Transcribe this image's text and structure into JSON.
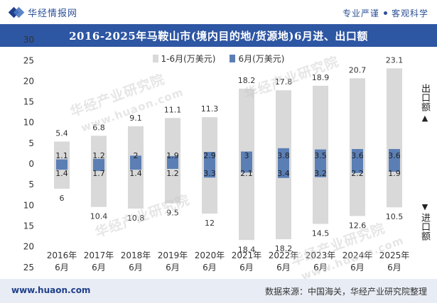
{
  "header": {
    "brand": "华经情报网",
    "tagline_left": "专业严谨",
    "tagline_right": "客观科学"
  },
  "title": "2016-2025年马鞍山市(境内目的地/货源地)6月进、出口额",
  "legend": {
    "cumulative": "1-6月(万美元)",
    "monthly": "6月(万美元)"
  },
  "side": {
    "export_label": "出口额",
    "import_label": "进口额",
    "up_arrow": "▲",
    "down_arrow": "▼"
  },
  "watermarks": [
    "华经产业研究院",
    "www.huaon.com",
    "华经产业研究院",
    "华经产业研究院",
    "www.huaon.com",
    "华经产业研究院"
  ],
  "footer": {
    "url": "www.huaon.com",
    "source": "数据来源：中国海关，华经产业研究院整理"
  },
  "colors": {
    "cumulative": "#d9d9d9",
    "monthly": "#5b7fb5",
    "title_bg": "#2d56a3"
  },
  "chart_data": {
    "type": "bar",
    "categories": [
      "2016年\n6月",
      "2017年\n6月",
      "2018年\n6月",
      "2019年\n6月",
      "2020年\n6月",
      "2021年\n6月",
      "2022年\n6月",
      "2023年\n6月",
      "2024年\n6月",
      "2025年\n6月"
    ],
    "series": [
      {
        "name": "1-6月(万美元)",
        "direction": "export",
        "values": [
          5.4,
          6.8,
          9.1,
          11.1,
          11.3,
          18.2,
          17.8,
          18.9,
          20.7,
          23.1
        ]
      },
      {
        "name": "1-6月(万美元)",
        "direction": "import",
        "values": [
          6,
          10.4,
          10.8,
          9.5,
          12,
          18.4,
          18.2,
          14.5,
          12.6,
          10.5
        ]
      },
      {
        "name": "6月(万美元)",
        "direction": "export",
        "values": [
          1.1,
          1.2,
          2,
          1.9,
          2.9,
          3,
          3.8,
          3.5,
          3.6,
          3.6
        ]
      },
      {
        "name": "6月(万美元)",
        "direction": "import",
        "values": [
          1.4,
          1.7,
          1.4,
          1.2,
          3.3,
          2.1,
          3.4,
          3.2,
          2.2,
          1.9
        ]
      }
    ],
    "y_ticks_up": [
      30,
      25,
      20,
      15,
      10,
      5,
      0
    ],
    "y_ticks_down": [
      5,
      10,
      15,
      20,
      25
    ],
    "ylim": [
      -25,
      30
    ],
    "grid": false,
    "legend_position": "top"
  }
}
